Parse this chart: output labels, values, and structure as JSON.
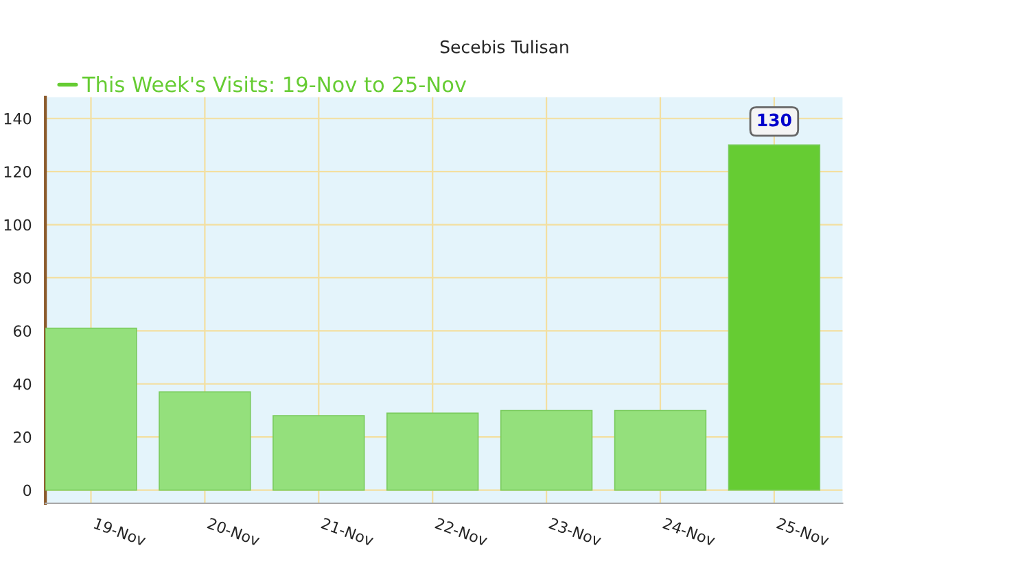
{
  "chart_data": {
    "type": "bar",
    "title": "Secebis Tulisan",
    "categories": [
      "19-Nov",
      "20-Nov",
      "21-Nov",
      "22-Nov",
      "23-Nov",
      "24-Nov",
      "25-Nov"
    ],
    "series": [
      {
        "name": "This Week's Visits: 19-Nov to 25-Nov",
        "color": "#66cc33",
        "colors": [
          "#94e07c",
          "#94e07c",
          "#94e07c",
          "#94e07c",
          "#94e07c",
          "#94e07c",
          "#66cc33"
        ],
        "values": [
          61,
          37,
          28,
          29,
          30,
          30,
          130
        ],
        "value_labels": [
          null,
          null,
          null,
          null,
          null,
          null,
          "130"
        ]
      }
    ],
    "ylim": [
      -5,
      148
    ],
    "yticks": [
      0,
      20,
      40,
      60,
      80,
      100,
      120,
      140
    ],
    "grid": true,
    "legend": "top left"
  }
}
